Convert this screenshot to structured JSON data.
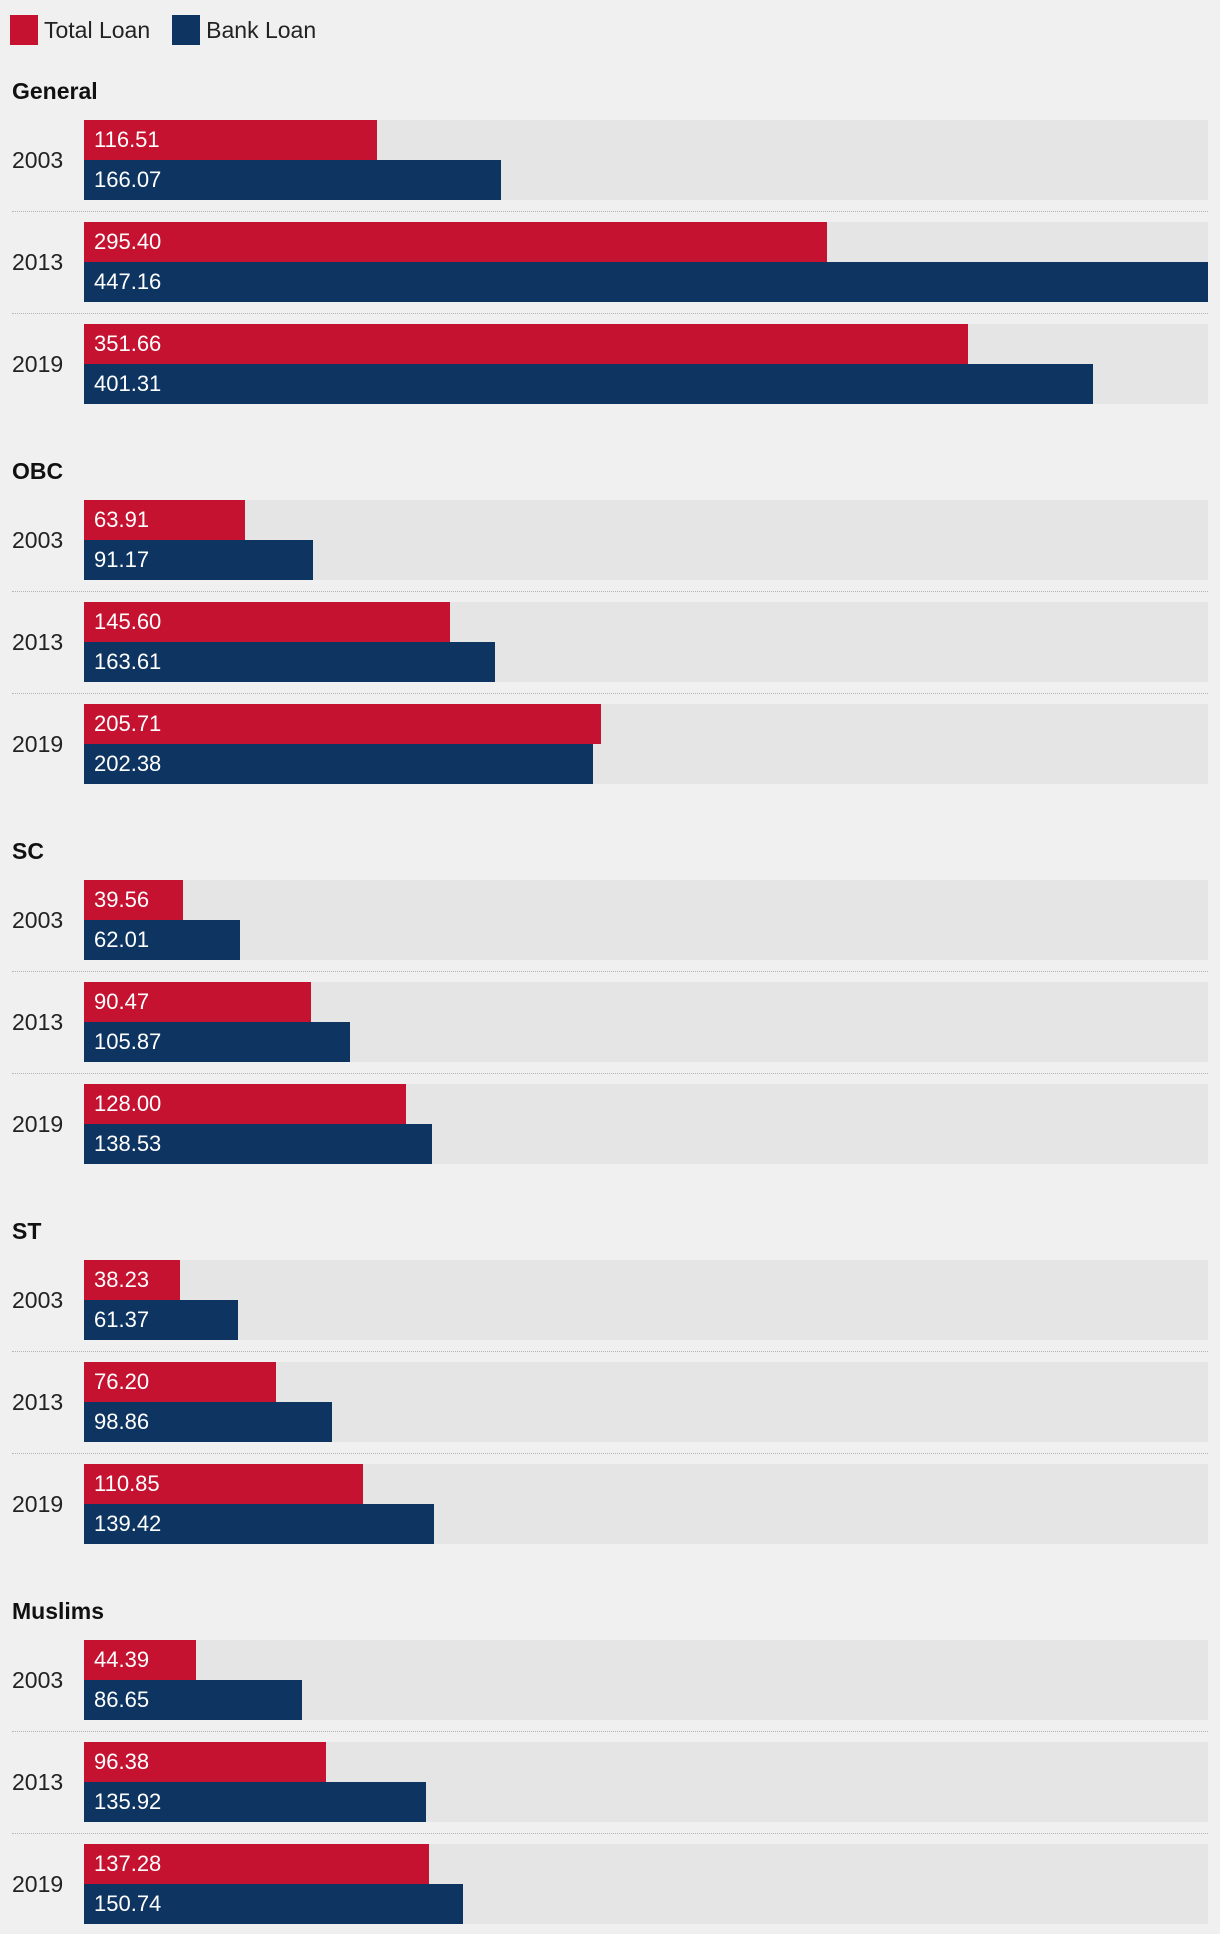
{
  "legend": [
    {
      "name": "Total Loan",
      "color": "#c41230"
    },
    {
      "name": "Bank Loan",
      "color": "#0e3561"
    }
  ],
  "chart_data": {
    "type": "bar",
    "orientation": "horizontal",
    "xlim": [
      0,
      447.16
    ],
    "series_names": [
      "Total Loan",
      "Bank Loan"
    ],
    "series_colors": [
      "#c41230",
      "#0e3561"
    ],
    "groups": [
      {
        "name": "General",
        "rows": [
          {
            "year": "2003",
            "values": [
              116.51,
              166.07
            ],
            "labels": [
              "116.51",
              "166.07"
            ]
          },
          {
            "year": "2013",
            "values": [
              295.4,
              447.16
            ],
            "labels": [
              "295.40",
              "447.16"
            ]
          },
          {
            "year": "2019",
            "values": [
              351.66,
              401.31
            ],
            "labels": [
              "351.66",
              "401.31"
            ]
          }
        ]
      },
      {
        "name": "OBC",
        "rows": [
          {
            "year": "2003",
            "values": [
              63.91,
              91.17
            ],
            "labels": [
              "63.91",
              "91.17"
            ]
          },
          {
            "year": "2013",
            "values": [
              145.6,
              163.61
            ],
            "labels": [
              "145.60",
              "163.61"
            ]
          },
          {
            "year": "2019",
            "values": [
              205.71,
              202.38
            ],
            "labels": [
              "205.71",
              "202.38"
            ]
          }
        ]
      },
      {
        "name": "SC",
        "rows": [
          {
            "year": "2003",
            "values": [
              39.56,
              62.01
            ],
            "labels": [
              "39.56",
              "62.01"
            ]
          },
          {
            "year": "2013",
            "values": [
              90.47,
              105.87
            ],
            "labels": [
              "90.47",
              "105.87"
            ]
          },
          {
            "year": "2019",
            "values": [
              128.0,
              138.53
            ],
            "labels": [
              "128.00",
              "138.53"
            ]
          }
        ]
      },
      {
        "name": "ST",
        "rows": [
          {
            "year": "2003",
            "values": [
              38.23,
              61.37
            ],
            "labels": [
              "38.23",
              "61.37"
            ]
          },
          {
            "year": "2013",
            "values": [
              76.2,
              98.86
            ],
            "labels": [
              "76.20",
              "98.86"
            ]
          },
          {
            "year": "2019",
            "values": [
              110.85,
              139.42
            ],
            "labels": [
              "110.85",
              "139.42"
            ]
          }
        ]
      },
      {
        "name": "Muslims",
        "rows": [
          {
            "year": "2003",
            "values": [
              44.39,
              86.65
            ],
            "labels": [
              "44.39",
              "86.65"
            ]
          },
          {
            "year": "2013",
            "values": [
              96.38,
              135.92
            ],
            "labels": [
              "96.38",
              "135.92"
            ]
          },
          {
            "year": "2019",
            "values": [
              137.28,
              150.74
            ],
            "labels": [
              "137.28",
              "150.74"
            ]
          }
        ]
      }
    ]
  }
}
